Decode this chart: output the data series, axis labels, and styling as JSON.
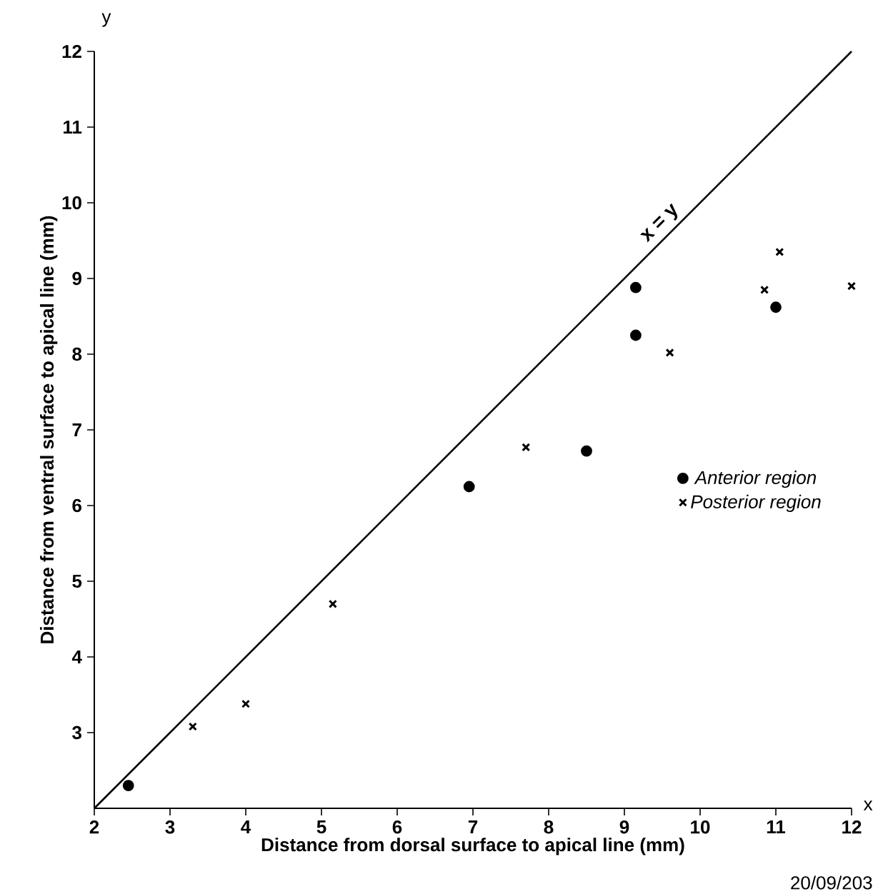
{
  "chart_data": {
    "type": "scatter",
    "xlabel": "Distance from dorsal surface to apical line (mm)",
    "ylabel": "Distance from ventral surface to apical line (mm)",
    "xlim": [
      2,
      12
    ],
    "ylim": [
      2,
      12
    ],
    "xticks": [
      2,
      3,
      4,
      5,
      6,
      7,
      8,
      9,
      10,
      11,
      12
    ],
    "yticks": [
      3,
      4,
      5,
      6,
      7,
      8,
      9,
      10,
      11,
      12
    ],
    "grid": false,
    "legend": "right",
    "series": [
      {
        "name": "Anterior region",
        "color": "#000000",
        "marker": "circle",
        "x": [
          2.45,
          6.95,
          8.5,
          9.15,
          9.15,
          11.0
        ],
        "values": [
          2.3,
          6.25,
          6.72,
          8.25,
          8.88,
          8.62
        ]
      },
      {
        "name": "Posterior region",
        "color": "#000000",
        "marker": "cross",
        "x": [
          3.3,
          4.0,
          5.15,
          7.7,
          9.6,
          10.85,
          11.05,
          12.0
        ],
        "values": [
          3.08,
          3.38,
          4.7,
          6.77,
          8.02,
          8.85,
          9.35,
          8.9
        ]
      },
      {
        "type": "line",
        "color": "#000000",
        "x": [
          2,
          12
        ],
        "values": [
          2,
          12
        ]
      }
    ],
    "annotations": [
      "x = y",
      "x",
      "y",
      "20/09/203"
    ]
  }
}
